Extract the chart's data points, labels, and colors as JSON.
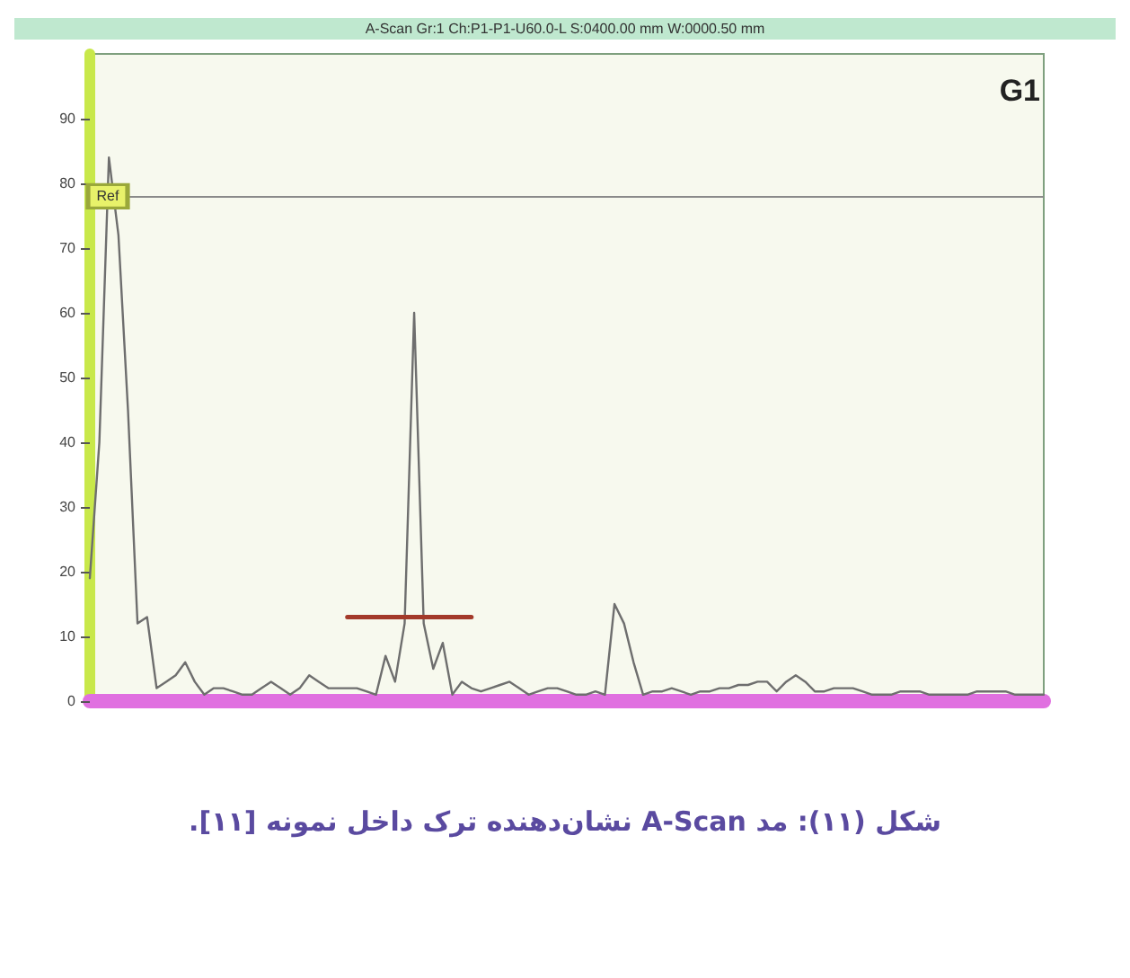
{
  "chart_data": {
    "type": "line",
    "title": "A-Scan Gr:1 Ch:P1-P1-U60.0-L S:0400.00 mm W:0000.50 mm",
    "categories": [
      null,
      null,
      null,
      null,
      null,
      null,
      null,
      null,
      null,
      null,
      null,
      null,
      null,
      null,
      null,
      null,
      null,
      null,
      null,
      null,
      null,
      null,
      null,
      null,
      null,
      null,
      null,
      null,
      null,
      null,
      null,
      null,
      null,
      null,
      null,
      null,
      null,
      null,
      null,
      null,
      null,
      null,
      null,
      null,
      null,
      null,
      null,
      null,
      null,
      null,
      null,
      null,
      null,
      null,
      null,
      null,
      null,
      null,
      null,
      null,
      null,
      null,
      null,
      null,
      null,
      null,
      null,
      null,
      null,
      null,
      null,
      null,
      null,
      null,
      null,
      null,
      null,
      null,
      null,
      null,
      null,
      null,
      null,
      null,
      null,
      null,
      null,
      null,
      null,
      null,
      null,
      null,
      null,
      null,
      null,
      null,
      null,
      null,
      null,
      null,
      null
    ],
    "series": [
      {
        "color": "#6e6e6e",
        "values": [
          19,
          40,
          84,
          72,
          45,
          12,
          13,
          2,
          3,
          4,
          6,
          3,
          1,
          2,
          2,
          1.5,
          1,
          1,
          2,
          3,
          2,
          1,
          2,
          4,
          3,
          2,
          2,
          2,
          2,
          1.5,
          1,
          7,
          3,
          12,
          60,
          12,
          5,
          9,
          1,
          3,
          2,
          1.5,
          2,
          2.5,
          3,
          2,
          1,
          1.5,
          2,
          2,
          1.5,
          1,
          1,
          1.5,
          1,
          15,
          12,
          6,
          1,
          1.5,
          1.5,
          2,
          1.5,
          1,
          1.5,
          1.5,
          2,
          2,
          2.5,
          2.5,
          3,
          3,
          1.5,
          3,
          4,
          3,
          1.5,
          1.5,
          2,
          2,
          2,
          1.5,
          1,
          1,
          1,
          1.5,
          1.5,
          1.5,
          1,
          1,
          1,
          1,
          1,
          1.5,
          1.5,
          1.5,
          1.5,
          1,
          1,
          1,
          1
        ]
      },
      {
        "color": "#a33a2a",
        "values": [
          null,
          null,
          null,
          null,
          null,
          null,
          null,
          null,
          null,
          null,
          null,
          null,
          null,
          null,
          null,
          null,
          null,
          null,
          null,
          null,
          null,
          null,
          null,
          null,
          null,
          null,
          null,
          13,
          13,
          13,
          13,
          13,
          13,
          13,
          13,
          13,
          13,
          13,
          13,
          13,
          13,
          null,
          null,
          null,
          null,
          null,
          null,
          null,
          null,
          null,
          null,
          null,
          null,
          null,
          null,
          null,
          null,
          null,
          null,
          null,
          null,
          null,
          null,
          null,
          null,
          null,
          null,
          null,
          null,
          null,
          null,
          null,
          null,
          null,
          null,
          null,
          null,
          null,
          null,
          null,
          null,
          null,
          null,
          null,
          null,
          null,
          null,
          null,
          null,
          null,
          null,
          null,
          null,
          null,
          null,
          null,
          null,
          null,
          null,
          null,
          null
        ]
      }
    ],
    "ylim": [
      0,
      100
    ],
    "yticks": [
      0,
      10,
      20,
      30,
      40,
      50,
      60,
      70,
      80,
      90
    ],
    "tick_labels": "y",
    "grid": false,
    "line_style": "solid",
    "ref_lines": [
      {
        "axis": "y",
        "value": 78,
        "color": "#8a8a8a"
      }
    ],
    "annotations": [
      {
        "text": "Ref",
        "y": 78
      },
      "G1",
      "شکل (۱۱): مد A-Scan نشان‌دهنده ترک داخل نمونه [۱۱]."
    ]
  }
}
